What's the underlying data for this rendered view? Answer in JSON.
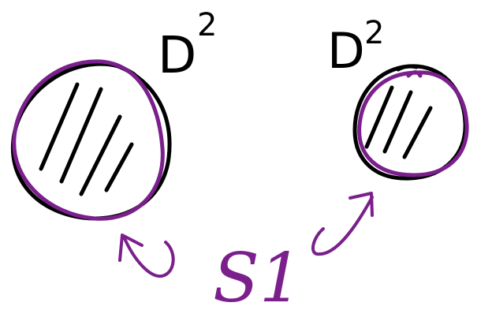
{
  "labels": {
    "left_disk": {
      "base": "D",
      "exponent": "2"
    },
    "right_disk": {
      "base": "D",
      "exponent": "2"
    },
    "boundary": "S1"
  },
  "colors": {
    "ink": "#000000",
    "highlight": "#7b1f8c",
    "background": "#ffffff"
  }
}
